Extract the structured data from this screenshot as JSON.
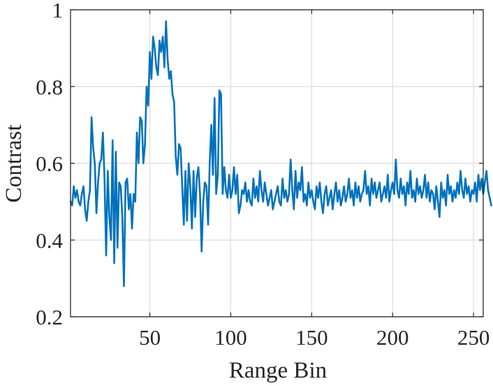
{
  "chart_data": {
    "type": "line",
    "title": "",
    "xlabel": "Range Bin",
    "ylabel": "Contrast",
    "xlim": [
      1,
      256
    ],
    "ylim": [
      0.2,
      1.0
    ],
    "xticks": [
      50,
      100,
      150,
      200,
      250
    ],
    "yticks": [
      0.2,
      0.4,
      0.6,
      0.8,
      1.0
    ],
    "xtick_labels": [
      "50",
      "100",
      "150",
      "200",
      "250"
    ],
    "ytick_labels": [
      "0.2",
      "0.4",
      "0.6",
      "0.8",
      "1"
    ],
    "grid": true,
    "colors": {
      "line": "#0072BD",
      "grid": "#DCDCDC",
      "axes": "#262626"
    },
    "series": [
      {
        "values": [
          0.5,
          0.49,
          0.54,
          0.51,
          0.53,
          0.5,
          0.49,
          0.52,
          0.54,
          0.48,
          0.45,
          0.5,
          0.53,
          0.72,
          0.64,
          0.6,
          0.47,
          0.55,
          0.6,
          0.61,
          0.68,
          0.56,
          0.36,
          0.58,
          0.46,
          0.4,
          0.66,
          0.34,
          0.63,
          0.38,
          0.55,
          0.54,
          0.46,
          0.28,
          0.55,
          0.56,
          0.48,
          0.52,
          0.43,
          0.52,
          0.5,
          0.68,
          0.6,
          0.72,
          0.71,
          0.6,
          0.65,
          0.8,
          0.75,
          0.89,
          0.82,
          0.93,
          0.9,
          0.85,
          0.83,
          0.92,
          0.89,
          0.93,
          0.85,
          0.97,
          0.87,
          0.82,
          0.84,
          0.78,
          0.76,
          0.62,
          0.57,
          0.65,
          0.64,
          0.54,
          0.44,
          0.58,
          0.45,
          0.6,
          0.54,
          0.43,
          0.58,
          0.46,
          0.56,
          0.59,
          0.52,
          0.37,
          0.5,
          0.55,
          0.54,
          0.44,
          0.6,
          0.7,
          0.57,
          0.77,
          0.52,
          0.57,
          0.79,
          0.78,
          0.52,
          0.59,
          0.53,
          0.51,
          0.57,
          0.51,
          0.53,
          0.59,
          0.52,
          0.57,
          0.47,
          0.49,
          0.53,
          0.52,
          0.55,
          0.5,
          0.53,
          0.5,
          0.49,
          0.56,
          0.51,
          0.54,
          0.5,
          0.58,
          0.53,
          0.5,
          0.55,
          0.52,
          0.49,
          0.51,
          0.53,
          0.48,
          0.5,
          0.52,
          0.54,
          0.5,
          0.49,
          0.56,
          0.51,
          0.53,
          0.5,
          0.52,
          0.61,
          0.53,
          0.48,
          0.58,
          0.51,
          0.55,
          0.53,
          0.59,
          0.5,
          0.52,
          0.49,
          0.55,
          0.51,
          0.53,
          0.5,
          0.48,
          0.54,
          0.51,
          0.55,
          0.5,
          0.47,
          0.52,
          0.54,
          0.49,
          0.51,
          0.53,
          0.48,
          0.52,
          0.55,
          0.5,
          0.53,
          0.49,
          0.51,
          0.54,
          0.5,
          0.52,
          0.56,
          0.51,
          0.53,
          0.49,
          0.55,
          0.51,
          0.54,
          0.5,
          0.52,
          0.53,
          0.58,
          0.52,
          0.54,
          0.49,
          0.56,
          0.52,
          0.55,
          0.51,
          0.53,
          0.55,
          0.5,
          0.52,
          0.54,
          0.51,
          0.57,
          0.5,
          0.53,
          0.55,
          0.52,
          0.61,
          0.53,
          0.51,
          0.56,
          0.52,
          0.54,
          0.49,
          0.55,
          0.52,
          0.58,
          0.51,
          0.53,
          0.5,
          0.56,
          0.52,
          0.54,
          0.51,
          0.53,
          0.57,
          0.51,
          0.55,
          0.5,
          0.53,
          0.52,
          0.48,
          0.54,
          0.5,
          0.46,
          0.55,
          0.51,
          0.53,
          0.49,
          0.57,
          0.52,
          0.54,
          0.5,
          0.53,
          0.51,
          0.55,
          0.52,
          0.58,
          0.53,
          0.51,
          0.56,
          0.52,
          0.54,
          0.5,
          0.53,
          0.52,
          0.55,
          0.5,
          0.57,
          0.53,
          0.56,
          0.52,
          0.55,
          0.58,
          0.53,
          0.51,
          0.49
        ]
      }
    ]
  }
}
